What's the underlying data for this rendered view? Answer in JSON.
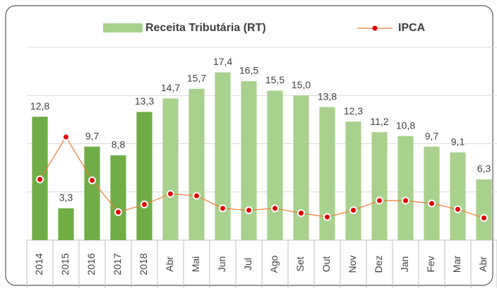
{
  "chart_data": {
    "type": "bar_line",
    "categories": [
      "2014",
      "2015",
      "2016",
      "2017",
      "2018",
      "Abr",
      "Mai",
      "Jun",
      "Jul",
      "Ago",
      "Set",
      "Out",
      "Nov",
      "Dez",
      "Jan",
      "Fev",
      "Mar",
      "Abr"
    ],
    "series": [
      {
        "name": "Receita Tributária (RT)",
        "type": "bar",
        "color": "#a9d18e",
        "bar_colors": [
          "#70ad47",
          "#70ad47",
          "#70ad47",
          "#70ad47",
          "#70ad47",
          "#a9d18e",
          "#a9d18e",
          "#a9d18e",
          "#a9d18e",
          "#a9d18e",
          "#a9d18e",
          "#a9d18e",
          "#a9d18e",
          "#a9d18e",
          "#a9d18e",
          "#a9d18e",
          "#a9d18e",
          "#a9d18e"
        ],
        "values": [
          12.8,
          3.3,
          9.7,
          8.8,
          13.3,
          14.7,
          15.7,
          17.4,
          16.5,
          15.5,
          15.0,
          13.8,
          12.3,
          11.2,
          10.8,
          9.7,
          9.1,
          6.3
        ],
        "value_labels": [
          "12,8",
          "3,3",
          "9,7",
          "8,8",
          "13,3",
          "14,7",
          "15,7",
          "17,4",
          "16,5",
          "15,5",
          "15,0",
          "13,8",
          "12,3",
          "11,2",
          "10,8",
          "9,7",
          "9,1",
          "6,3"
        ]
      },
      {
        "name": "IPCA",
        "type": "line",
        "color": "#ed7d31",
        "marker_color": "#e00000",
        "values": [
          6.3,
          10.7,
          6.2,
          2.9,
          3.7,
          4.8,
          4.6,
          3.3,
          3.1,
          3.3,
          2.8,
          2.4,
          3.1,
          4.1,
          4.1,
          3.8,
          3.2,
          2.3
        ]
      }
    ],
    "ylim": [
      0,
      20
    ],
    "yticks": [
      5,
      10,
      15,
      20
    ],
    "grid": true,
    "legend": "top"
  }
}
